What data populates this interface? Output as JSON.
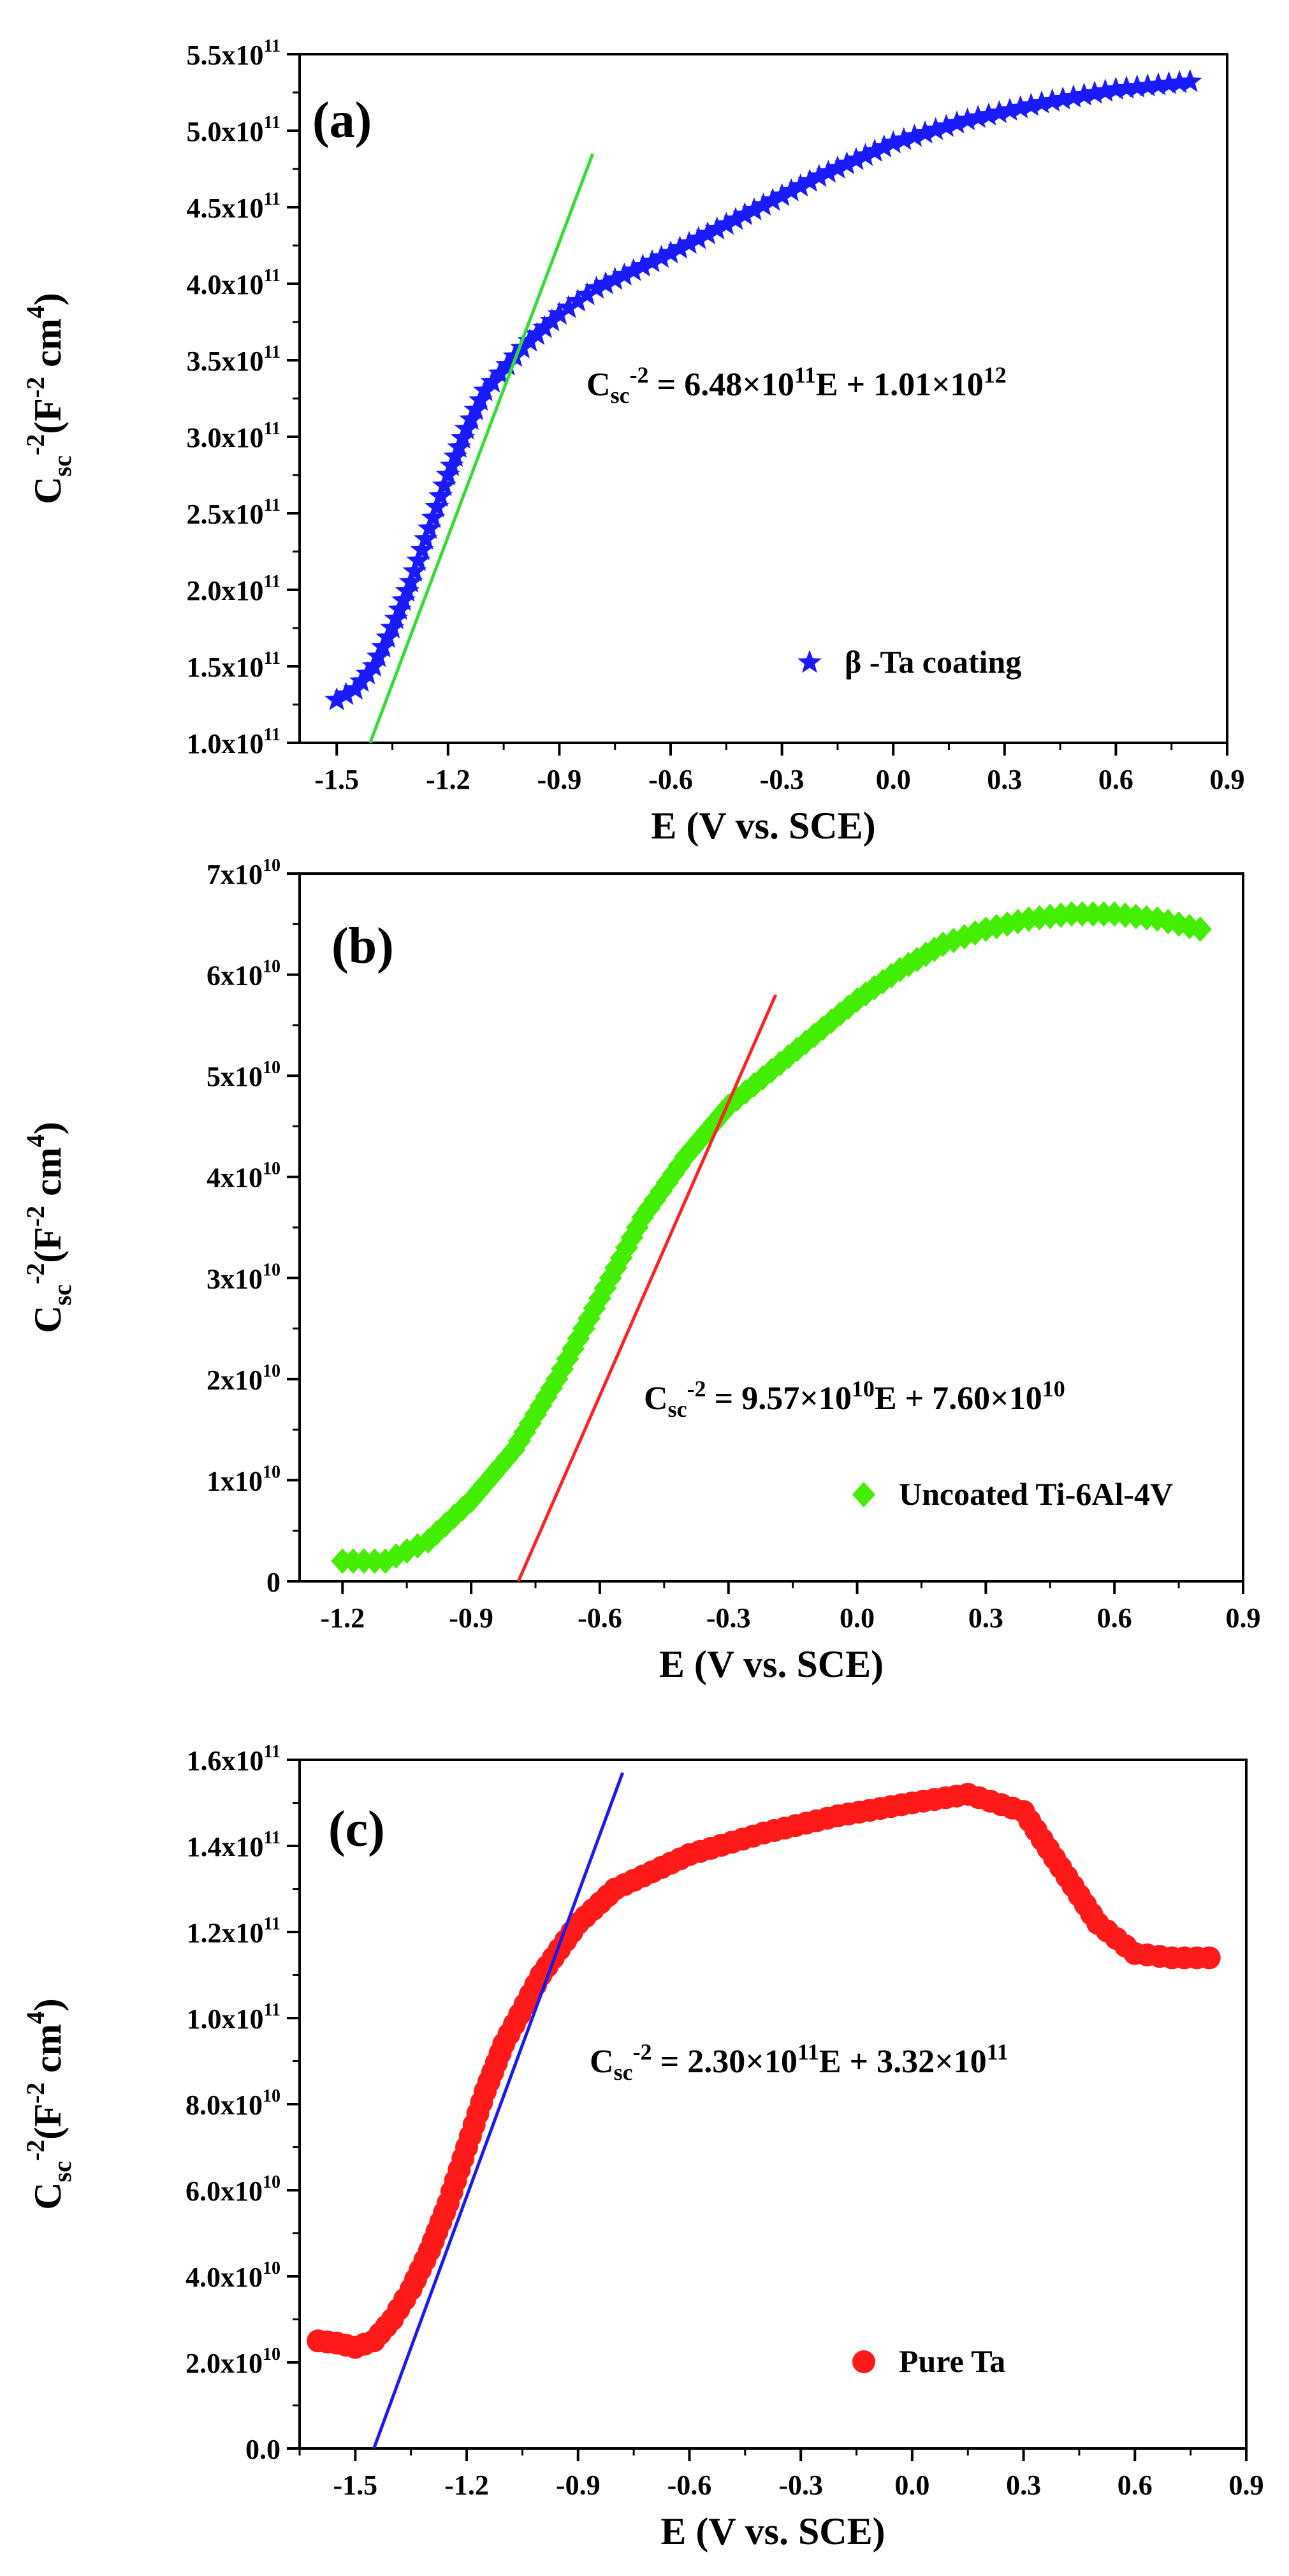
{
  "chart_data": [
    {
      "type": "scatter",
      "panel_label": "(a)",
      "xlabel": "E (V vs. SCE)",
      "ylabel": {
        "main": "C",
        "sub": "sc",
        "sup": "-2",
        "units_a": "(F",
        "units_sup_a": "-2",
        "units_b": " cm",
        "units_sup_b": "4",
        "units_c": ")"
      },
      "xlim": [
        -1.6,
        0.9
      ],
      "ylim": [
        100000000000.0,
        550000000000.0
      ],
      "xticks": [
        {
          "v": -1.5,
          "label": "-1.5"
        },
        {
          "v": -1.2,
          "label": "-1.2"
        },
        {
          "v": -0.9,
          "label": "-0.9"
        },
        {
          "v": -0.6,
          "label": "-0.6"
        },
        {
          "v": -0.3,
          "label": "-0.3"
        },
        {
          "v": 0.0,
          "label": "0.0"
        },
        {
          "v": 0.3,
          "label": "0.3"
        },
        {
          "v": 0.6,
          "label": "0.6"
        },
        {
          "v": 0.9,
          "label": "0.9"
        }
      ],
      "yticks": [
        {
          "v": 100000000000.0,
          "mant": "1.0x10",
          "exp": "11"
        },
        {
          "v": 150000000000.0,
          "mant": "1.5x10",
          "exp": "11"
        },
        {
          "v": 200000000000.0,
          "mant": "2.0x10",
          "exp": "11"
        },
        {
          "v": 250000000000.0,
          "mant": "2.5x10",
          "exp": "11"
        },
        {
          "v": 300000000000.0,
          "mant": "3.0x10",
          "exp": "11"
        },
        {
          "v": 350000000000.0,
          "mant": "3.5x10",
          "exp": "11"
        },
        {
          "v": 400000000000.0,
          "mant": "4.0x10",
          "exp": "11"
        },
        {
          "v": 450000000000.0,
          "mant": "4.5x10",
          "exp": "11"
        },
        {
          "v": 500000000000.0,
          "mant": "5.0x10",
          "exp": "11"
        },
        {
          "v": 550000000000.0,
          "mant": "5.5x10",
          "exp": "11"
        }
      ],
      "series": [
        {
          "name": "β -Ta coating",
          "marker": "star",
          "color": "#1a1aff",
          "points": [
            [
              -1.5,
              128000000000.0
            ],
            [
              -1.45,
              135000000000.0
            ],
            [
              -1.4,
              150000000000.0
            ],
            [
              -1.35,
              175000000000.0
            ],
            [
              -1.3,
              205000000000.0
            ],
            [
              -1.25,
              240000000000.0
            ],
            [
              -1.2,
              275000000000.0
            ],
            [
              -1.15,
              305000000000.0
            ],
            [
              -1.1,
              330000000000.0
            ],
            [
              -1.0,
              358000000000.0
            ],
            [
              -0.9,
              380000000000.0
            ],
            [
              -0.8,
              397000000000.0
            ],
            [
              -0.6,
              420000000000.0
            ],
            [
              -0.4,
              445000000000.0
            ],
            [
              -0.2,
              470000000000.0
            ],
            [
              0.0,
              492000000000.0
            ],
            [
              0.2,
              507000000000.0
            ],
            [
              0.4,
              518000000000.0
            ],
            [
              0.6,
              527000000000.0
            ],
            [
              0.8,
              532000000000.0
            ]
          ]
        }
      ],
      "fit_line": {
        "color": "#33dd33",
        "x": [
          -1.41,
          -0.81
        ],
        "y": [
          100000000000.0,
          485000000000.0
        ]
      },
      "equation": {
        "lhs": "C",
        "lhs_sub": "sc",
        "lhs_sup": "-2",
        "eq": " = 6.48×10",
        "sup1": "11",
        "mid": "E + 1.01×10",
        "sup2": "12"
      }
    },
    {
      "type": "scatter",
      "panel_label": "(b)",
      "xlabel": "E (V vs. SCE)",
      "ylabel": {
        "main": "C",
        "sub": "sc",
        "sup": "-2",
        "units_a": "(F",
        "units_sup_a": "-2",
        "units_b": " cm",
        "units_sup_b": "4",
        "units_c": ")"
      },
      "xlim": [
        -1.3,
        0.9
      ],
      "ylim": [
        0,
        70000000000.0
      ],
      "xticks": [
        {
          "v": -1.2,
          "label": "-1.2"
        },
        {
          "v": -0.9,
          "label": "-0.9"
        },
        {
          "v": -0.6,
          "label": "-0.6"
        },
        {
          "v": -0.3,
          "label": "-0.3"
        },
        {
          "v": 0.0,
          "label": "0.0"
        },
        {
          "v": 0.3,
          "label": "0.3"
        },
        {
          "v": 0.6,
          "label": "0.6"
        },
        {
          "v": 0.9,
          "label": "0.9"
        }
      ],
      "yticks": [
        {
          "v": 0,
          "mant": "0",
          "exp": ""
        },
        {
          "v": 10000000000.0,
          "mant": "1x10",
          "exp": "10"
        },
        {
          "v": 20000000000.0,
          "mant": "2x10",
          "exp": "10"
        },
        {
          "v": 30000000000.0,
          "mant": "3x10",
          "exp": "10"
        },
        {
          "v": 40000000000.0,
          "mant": "4x10",
          "exp": "10"
        },
        {
          "v": 50000000000.0,
          "mant": "5x10",
          "exp": "10"
        },
        {
          "v": 60000000000.0,
          "mant": "6x10",
          "exp": "10"
        },
        {
          "v": 70000000000.0,
          "mant": "7x10",
          "exp": "10"
        }
      ],
      "series": [
        {
          "name": "Uncoated Ti-6Al-4V",
          "marker": "diamond",
          "color": "#44ee00",
          "points": [
            [
              -1.2,
              2000000000.0
            ],
            [
              -1.1,
              2000000000.0
            ],
            [
              -1.0,
              4000000000.0
            ],
            [
              -0.9,
              8000000000.0
            ],
            [
              -0.8,
              13000000000.0
            ],
            [
              -0.7,
              20000000000.0
            ],
            [
              -0.6,
              28000000000.0
            ],
            [
              -0.5,
              36000000000.0
            ],
            [
              -0.4,
              42000000000.0
            ],
            [
              -0.3,
              47000000000.0
            ],
            [
              -0.2,
              50500000000.0
            ],
            [
              -0.1,
              54000000000.0
            ],
            [
              0.0,
              57500000000.0
            ],
            [
              0.1,
              60500000000.0
            ],
            [
              0.2,
              63000000000.0
            ],
            [
              0.3,
              64500000000.0
            ],
            [
              0.4,
              65500000000.0
            ],
            [
              0.5,
              66000000000.0
            ],
            [
              0.6,
              66000000000.0
            ],
            [
              0.7,
              65500000000.0
            ],
            [
              0.8,
              64500000000.0
            ]
          ]
        }
      ],
      "fit_line": {
        "color": "#ff2222",
        "x": [
          -0.79,
          -0.19
        ],
        "y": [
          0.0,
          58000000000.0
        ]
      },
      "equation": {
        "lhs": "C",
        "lhs_sub": "sc",
        "lhs_sup": "-2",
        "eq": " = 9.57×10",
        "sup1": "10",
        "mid": "E + 7.60×10",
        "sup2": "10"
      }
    },
    {
      "type": "scatter",
      "panel_label": "(c)",
      "xlabel": "E (V vs. SCE)",
      "ylabel": {
        "main": "C",
        "sub": "sc",
        "sup": "-2",
        "units_a": "(F",
        "units_sup_a": "-2",
        "units_b": " cm",
        "units_sup_b": "4",
        "units_c": ")"
      },
      "xlim": [
        -1.65,
        0.9
      ],
      "ylim": [
        0,
        160000000000.0
      ],
      "xticks": [
        {
          "v": -1.5,
          "label": "-1.5"
        },
        {
          "v": -1.2,
          "label": "-1.2"
        },
        {
          "v": -0.9,
          "label": "-0.9"
        },
        {
          "v": -0.6,
          "label": "-0.6"
        },
        {
          "v": -0.3,
          "label": "-0.3"
        },
        {
          "v": 0.0,
          "label": "0.0"
        },
        {
          "v": 0.3,
          "label": "0.3"
        },
        {
          "v": 0.6,
          "label": "0.6"
        },
        {
          "v": 0.9,
          "label": "0.9"
        }
      ],
      "yticks": [
        {
          "v": 0,
          "mant": "0.0",
          "exp": ""
        },
        {
          "v": 20000000000.0,
          "mant": "2.0x10",
          "exp": "10"
        },
        {
          "v": 40000000000.0,
          "mant": "4.0x10",
          "exp": "10"
        },
        {
          "v": 60000000000.0,
          "mant": "6.0x10",
          "exp": "10"
        },
        {
          "v": 80000000000.0,
          "mant": "8.0x10",
          "exp": "10"
        },
        {
          "v": 100000000000.0,
          "mant": "1.0x10",
          "exp": "11"
        },
        {
          "v": 120000000000.0,
          "mant": "1.2x10",
          "exp": "11"
        },
        {
          "v": 140000000000.0,
          "mant": "1.4x10",
          "exp": "11"
        },
        {
          "v": 160000000000.0,
          "mant": "1.6x10",
          "exp": "11"
        }
      ],
      "series": [
        {
          "name": "Pure Ta",
          "marker": "circle",
          "color": "#ff1a1a",
          "points": [
            [
              -1.6,
              25000000000.0
            ],
            [
              -1.55,
              24500000000.0
            ],
            [
              -1.5,
              23500000000.0
            ],
            [
              -1.45,
              25000000000.0
            ],
            [
              -1.4,
              30000000000.0
            ],
            [
              -1.35,
              37000000000.0
            ],
            [
              -1.3,
              46000000000.0
            ],
            [
              -1.25,
              57000000000.0
            ],
            [
              -1.2,
              70000000000.0
            ],
            [
              -1.15,
              83000000000.0
            ],
            [
              -1.1,
              94000000000.0
            ],
            [
              -1.0,
              110000000000.0
            ],
            [
              -0.9,
              122000000000.0
            ],
            [
              -0.8,
              130000000000.0
            ],
            [
              -0.6,
              138000000000.0
            ],
            [
              -0.4,
              143000000000.0
            ],
            [
              -0.2,
              147000000000.0
            ],
            [
              0.0,
              150000000000.0
            ],
            [
              0.15,
              152000000000.0
            ],
            [
              0.3,
              148000000000.0
            ],
            [
              0.4,
              135000000000.0
            ],
            [
              0.5,
              122000000000.0
            ],
            [
              0.6,
              115000000000.0
            ],
            [
              0.7,
              114000000000.0
            ],
            [
              0.8,
              114000000000.0
            ]
          ]
        }
      ],
      "fit_line": {
        "color": "#1a1aee",
        "x": [
          -1.45,
          -0.78
        ],
        "y": [
          0.0,
          157000000000.0
        ]
      },
      "equation": {
        "lhs": "C",
        "lhs_sub": "sc",
        "lhs_sup": "-2",
        "eq": " = 2.30×10",
        "sup1": "11",
        "mid": "E + 3.32×10",
        "sup2": "11"
      }
    }
  ]
}
